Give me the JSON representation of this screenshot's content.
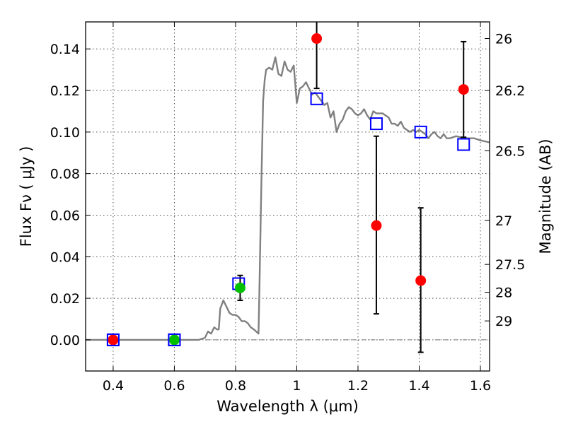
{
  "chart_data": {
    "type": "scatter",
    "xlabel": "Wavelength  λ (μm)",
    "ylabel": "Flux  Fν  ( μJy )",
    "y2label": "Magnitude (AB)",
    "xlim": [
      0.31,
      1.63
    ],
    "ylim": [
      -0.015,
      0.153
    ],
    "x_ticks": [
      0.4,
      0.6,
      0.8,
      1.0,
      1.2,
      1.4,
      1.6
    ],
    "x_tick_labels": [
      "0.4",
      "0.6",
      "0.8",
      "1",
      "1.2",
      "1.4",
      "1.6"
    ],
    "y_ticks": [
      0.0,
      0.02,
      0.04,
      0.06,
      0.08,
      0.1,
      0.12,
      0.14
    ],
    "y_tick_labels": [
      "0.00",
      "0.02",
      "0.04",
      "0.06",
      "0.08",
      "0.10",
      "0.12",
      "0.14"
    ],
    "mag_ticks": [
      {
        "label": "26",
        "flux": 0.145
      },
      {
        "label": "26.2",
        "flux": 0.12
      },
      {
        "label": "26.5",
        "flux": 0.091
      },
      {
        "label": "27",
        "flux": 0.0575
      },
      {
        "label": "27.5",
        "flux": 0.0363
      },
      {
        "label": "28",
        "flux": 0.0229
      },
      {
        "label": "29",
        "flux": 0.0091
      }
    ],
    "grid": true,
    "series": [
      {
        "kind": "line",
        "color": "#808080",
        "points": [
          [
            0.31,
            0.0
          ],
          [
            0.68,
            0.0
          ],
          [
            0.7,
            0.001
          ],
          [
            0.71,
            0.004
          ],
          [
            0.72,
            0.003
          ],
          [
            0.73,
            0.006
          ],
          [
            0.74,
            0.005
          ],
          [
            0.745,
            0.005
          ],
          [
            0.75,
            0.015
          ],
          [
            0.76,
            0.019
          ],
          [
            0.77,
            0.016
          ],
          [
            0.78,
            0.013
          ],
          [
            0.79,
            0.012
          ],
          [
            0.8,
            0.012
          ],
          [
            0.81,
            0.011
          ],
          [
            0.82,
            0.009
          ],
          [
            0.83,
            0.009
          ],
          [
            0.84,
            0.008
          ],
          [
            0.85,
            0.006
          ],
          [
            0.86,
            0.005
          ],
          [
            0.875,
            0.003
          ],
          [
            0.878,
            0.025
          ],
          [
            0.885,
            0.08
          ],
          [
            0.89,
            0.115
          ],
          [
            0.895,
            0.125
          ],
          [
            0.9,
            0.13
          ],
          [
            0.91,
            0.131
          ],
          [
            0.92,
            0.13
          ],
          [
            0.93,
            0.136
          ],
          [
            0.94,
            0.128
          ],
          [
            0.95,
            0.127
          ],
          [
            0.96,
            0.134
          ],
          [
            0.97,
            0.13
          ],
          [
            0.98,
            0.129
          ],
          [
            0.99,
            0.132
          ],
          [
            1.0,
            0.114
          ],
          [
            1.01,
            0.121
          ],
          [
            1.02,
            0.122
          ],
          [
            1.03,
            0.124
          ],
          [
            1.04,
            0.121
          ],
          [
            1.05,
            0.118
          ],
          [
            1.06,
            0.119
          ],
          [
            1.07,
            0.117
          ],
          [
            1.08,
            0.115
          ],
          [
            1.09,
            0.113
          ],
          [
            1.1,
            0.114
          ],
          [
            1.11,
            0.107
          ],
          [
            1.12,
            0.11
          ],
          [
            1.13,
            0.1
          ],
          [
            1.14,
            0.104
          ],
          [
            1.15,
            0.106
          ],
          [
            1.16,
            0.11
          ],
          [
            1.17,
            0.112
          ],
          [
            1.18,
            0.111
          ],
          [
            1.19,
            0.109
          ],
          [
            1.2,
            0.108
          ],
          [
            1.21,
            0.109
          ],
          [
            1.22,
            0.111
          ],
          [
            1.23,
            0.108
          ],
          [
            1.24,
            0.106
          ],
          [
            1.25,
            0.11
          ],
          [
            1.26,
            0.109
          ],
          [
            1.28,
            0.109
          ],
          [
            1.3,
            0.107
          ],
          [
            1.31,
            0.104
          ],
          [
            1.32,
            0.104
          ],
          [
            1.33,
            0.103
          ],
          [
            1.34,
            0.105
          ],
          [
            1.35,
            0.102
          ],
          [
            1.36,
            0.101
          ],
          [
            1.37,
            0.1
          ],
          [
            1.38,
            0.101
          ],
          [
            1.39,
            0.1
          ],
          [
            1.4,
            0.101
          ],
          [
            1.41,
            0.1
          ],
          [
            1.42,
            0.099
          ],
          [
            1.43,
            0.097
          ],
          [
            1.44,
            0.099
          ],
          [
            1.45,
            0.1
          ],
          [
            1.46,
            0.098
          ],
          [
            1.47,
            0.097
          ],
          [
            1.48,
            0.099
          ],
          [
            1.49,
            0.097
          ],
          [
            1.5,
            0.097
          ],
          [
            1.52,
            0.098
          ],
          [
            1.55,
            0.097
          ],
          [
            1.58,
            0.097
          ],
          [
            1.6,
            0.096
          ],
          [
            1.63,
            0.095
          ]
        ]
      },
      {
        "kind": "open-square",
        "color": "#0000ff",
        "points": [
          [
            0.4,
            0.0
          ],
          [
            0.6,
            0.0
          ],
          [
            0.81,
            0.027
          ],
          [
            1.065,
            0.116
          ],
          [
            1.26,
            0.104
          ],
          [
            1.405,
            0.1
          ],
          [
            1.545,
            0.094
          ]
        ]
      },
      {
        "kind": "point",
        "color": "#ff0000",
        "points": [
          {
            "x": 0.4,
            "y": 0.0,
            "err_low": null,
            "err_high": null
          },
          {
            "x": 1.065,
            "y": 0.145,
            "err_low": 0.121,
            "err_high": 0.153
          },
          {
            "x": 1.26,
            "y": 0.055,
            "err_low": 0.0125,
            "err_high": 0.098
          },
          {
            "x": 1.405,
            "y": 0.0285,
            "err_low": -0.006,
            "err_high": 0.0635
          },
          {
            "x": 1.545,
            "y": 0.1205,
            "err_low": 0.0975,
            "err_high": 0.1435
          }
        ]
      },
      {
        "kind": "point",
        "color": "#00c000",
        "points": [
          {
            "x": 0.6,
            "y": 0.0,
            "err_low": null,
            "err_high": null
          },
          {
            "x": 0.815,
            "y": 0.025,
            "err_low": 0.019,
            "err_high": 0.031
          }
        ]
      }
    ]
  }
}
